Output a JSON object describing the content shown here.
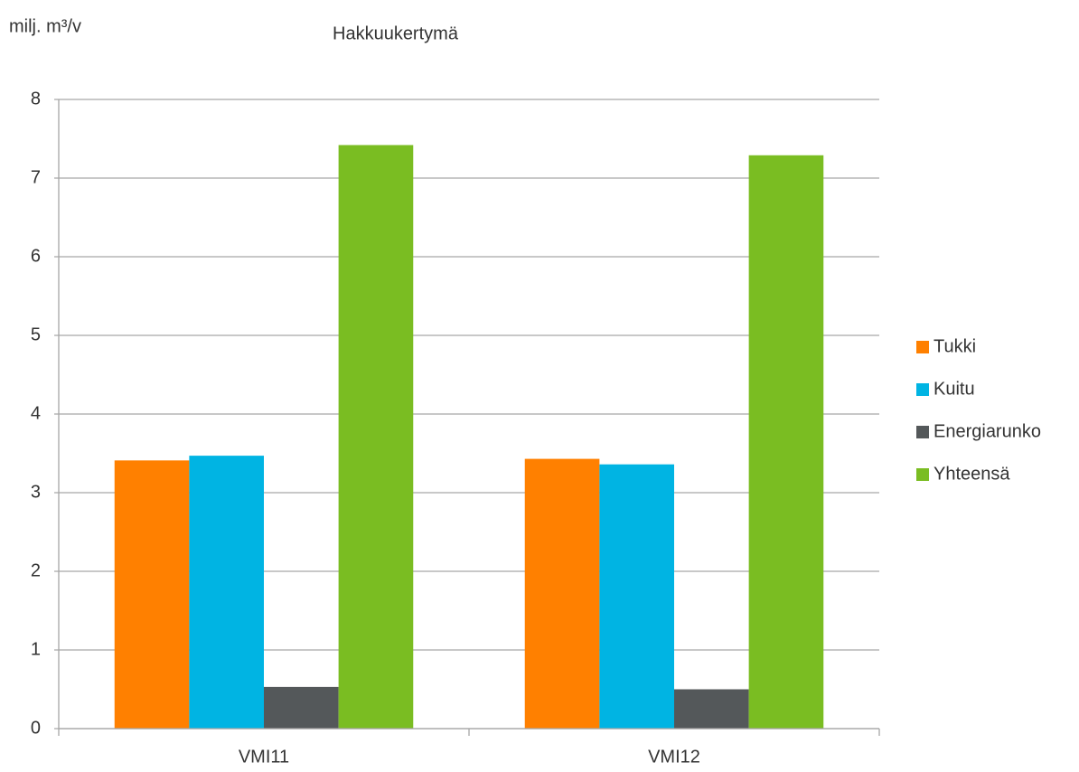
{
  "chart_data": {
    "type": "bar",
    "title": "Hakkuukertymä",
    "y_label": "milj. m³/v",
    "categories": [
      "VMI11",
      "VMI12"
    ],
    "series": [
      {
        "name": "Tukki",
        "color": "#ff8000",
        "values": [
          3.41,
          3.43
        ]
      },
      {
        "name": "Kuitu",
        "color": "#00b4e3",
        "values": [
          3.47,
          3.36
        ]
      },
      {
        "name": "Energiarunko",
        "color": "#54585a",
        "values": [
          0.53,
          0.5
        ]
      },
      {
        "name": "Yhteensä",
        "color": "#7abd22",
        "values": [
          7.42,
          7.29
        ]
      }
    ],
    "ylim": [
      0,
      8
    ],
    "yticks": [
      0,
      1,
      2,
      3,
      4,
      5,
      6,
      7,
      8
    ],
    "grid": true,
    "legend": "right"
  }
}
